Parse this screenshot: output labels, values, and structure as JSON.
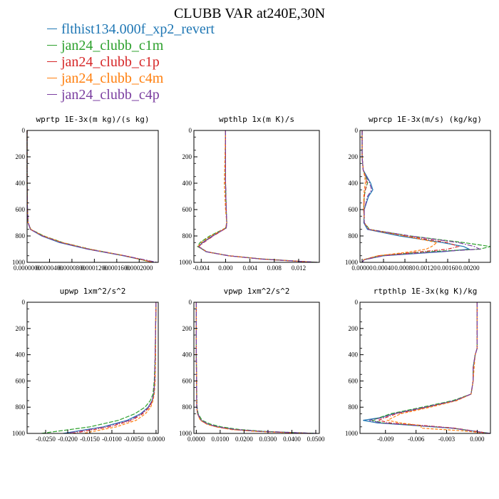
{
  "title": "CLUBB VAR at240E,30N",
  "legend": [
    {
      "label": "flthist134.000f_xp2_revert",
      "color": "#1f77b4"
    },
    {
      "label": "jan24_clubb_c1m",
      "color": "#2ca02c"
    },
    {
      "label": "jan24_clubb_c1p",
      "color": "#d62728"
    },
    {
      "label": "jan24_clubb_c4m",
      "color": "#ff7f0e"
    },
    {
      "label": "jan24_clubb_c4p",
      "color": "#7b3fa0"
    }
  ],
  "chart_data": [
    {
      "type": "line",
      "title": "wprtp  1E-3x(m kg)/(s kg)",
      "xlim": [
        0.0,
        0.000234
      ],
      "ylim": [
        1000,
        0
      ],
      "yticks": [
        0,
        200,
        400,
        600,
        800,
        1000
      ],
      "xticks": [
        0.0,
        4e-05,
        8e-05,
        0.00012,
        0.00016,
        0.0002
      ],
      "xticklabels": [
        "0.0000000",
        "0.0000400",
        "0.0000800",
        "0.0001200",
        "0.0001600",
        "0.0002000"
      ],
      "y": [
        0,
        200,
        400,
        600,
        700,
        750,
        800,
        850,
        900,
        950,
        1000
      ],
      "series": [
        {
          "color": "#1f77b4",
          "values": [
            0.0,
            0.0,
            0.0,
            6e-07,
            1.8e-06,
            6e-06,
            2.6e-05,
            5.8e-05,
            0.000108,
            0.000172,
            0.000226
          ]
        },
        {
          "color": "#2ca02c",
          "values": [
            0.0,
            0.0,
            0.0,
            6e-07,
            1.8e-06,
            6.8e-06,
            3e-05,
            6.4e-05,
            0.000112,
            0.000174,
            0.000224
          ]
        },
        {
          "color": "#d62728",
          "values": [
            0.0,
            0.0,
            0.0,
            6e-07,
            1.8e-06,
            6.4e-06,
            2.8e-05,
            6.2e-05,
            0.00011,
            0.000174,
            0.000226
          ]
        },
        {
          "color": "#ff7f0e",
          "values": [
            0.0,
            0.0,
            0.0,
            6e-07,
            1.8e-06,
            6.6e-06,
            2.9e-05,
            6.3e-05,
            0.000111,
            0.000175,
            0.000225
          ]
        },
        {
          "color": "#7b3fa0",
          "values": [
            0.0,
            0.0,
            0.0,
            6e-07,
            1.8e-06,
            6.2e-06,
            2.7e-05,
            6e-05,
            0.000109,
            0.000174,
            0.000232
          ]
        }
      ]
    },
    {
      "type": "line",
      "title": "wpthlp  1x(m K)/s",
      "xlim": [
        -0.0052,
        0.0154
      ],
      "ylim": [
        1000,
        0
      ],
      "yticks": [
        0,
        200,
        400,
        600,
        800,
        1000
      ],
      "xticks": [
        -0.004,
        0.0,
        0.004,
        0.008,
        0.012
      ],
      "xticklabels": [
        "-0.004",
        "0.000",
        "0.004",
        "0.008",
        "0.012"
      ],
      "y": [
        0,
        200,
        400,
        600,
        700,
        740,
        800,
        850,
        880,
        920,
        950,
        975,
        1000
      ],
      "series": [
        {
          "color": "#1f77b4",
          "values": [
            0.0,
            0.0,
            0.0,
            0.0001,
            0.0002,
            0.0001,
            -0.0022,
            -0.0038,
            -0.0045,
            -0.0032,
            0.0005,
            0.006,
            0.0148
          ]
        },
        {
          "color": "#2ca02c",
          "values": [
            0.0,
            0.0,
            0.0,
            0.0001,
            0.0002,
            0.0,
            -0.0026,
            -0.0042,
            -0.0046,
            -0.003,
            0.0006,
            0.0062,
            0.015
          ]
        },
        {
          "color": "#d62728",
          "values": [
            0.0,
            0.0,
            0.0,
            0.0001,
            0.0002,
            0.0001,
            -0.002,
            -0.0036,
            -0.0044,
            -0.0031,
            0.0005,
            0.0058,
            0.0147
          ]
        },
        {
          "color": "#ff7f0e",
          "values": [
            0.0,
            -0.0001,
            -0.0002,
            0.0,
            0.0002,
            0.0,
            -0.0024,
            -0.004,
            -0.0045,
            -0.0031,
            0.0006,
            0.0061,
            0.0149
          ]
        },
        {
          "color": "#7b3fa0",
          "values": [
            0.0,
            0.0,
            0.0,
            0.0001,
            0.0002,
            0.0001,
            -0.0021,
            -0.0037,
            -0.0044,
            -0.0031,
            0.0005,
            0.0059,
            0.0151
          ]
        }
      ]
    },
    {
      "type": "line",
      "title": "wprcp  1E-3x(m/s) (kg/kg)",
      "xlim": [
        -4e-05,
        0.0024
      ],
      "ylim": [
        1000,
        0
      ],
      "yticks": [
        0,
        200,
        400,
        600,
        800,
        1000
      ],
      "xticks": [
        0.0,
        0.0004,
        0.0008,
        0.0012,
        0.0016,
        0.002
      ],
      "xticklabels": [
        "0.00000",
        "0.00040",
        "0.00080",
        "0.00120",
        "0.00160",
        "0.00200"
      ],
      "y": [
        0,
        200,
        300,
        350,
        400,
        450,
        500,
        600,
        700,
        750,
        800,
        850,
        880,
        900,
        920,
        950,
        980,
        1000
      ],
      "series": [
        {
          "color": "#1f77b4",
          "values": [
            0.0,
            0.0,
            2e-05,
            9e-05,
            0.00016,
            0.0002,
            0.00012,
            4e-05,
            3e-05,
            0.0001,
            0.0007,
            0.0015,
            0.0019,
            0.002,
            0.0015,
            0.0004,
            4e-05,
            0.0
          ]
        },
        {
          "color": "#2ca02c",
          "values": [
            0.0,
            0.0,
            2e-05,
            7e-05,
            0.0001,
            6e-05,
            4e-05,
            3e-05,
            4e-05,
            0.00014,
            0.0009,
            0.0019,
            0.0024,
            0.0022,
            0.0012,
            0.0003,
            3e-05,
            0.0
          ]
        },
        {
          "color": "#d62728",
          "values": [
            0.0,
            0.0,
            2e-05,
            6e-05,
            9e-05,
            6e-05,
            4e-05,
            3e-05,
            4e-05,
            0.00012,
            0.0008,
            0.0016,
            0.0018,
            0.0016,
            0.0011,
            0.0003,
            3e-05,
            0.0
          ]
        },
        {
          "color": "#ff7f0e",
          "values": [
            0.0,
            0.0,
            2e-05,
            5e-05,
            6e-05,
            4e-05,
            3e-05,
            3e-05,
            4e-05,
            0.00013,
            0.0008,
            0.0014,
            0.0013,
            0.0012,
            0.0009,
            0.0003,
            3e-05,
            0.0
          ]
        },
        {
          "color": "#7b3fa0",
          "values": [
            0.0,
            0.0,
            2e-05,
            8e-05,
            0.00014,
            0.00018,
            0.0001,
            4e-05,
            4e-05,
            0.00012,
            0.0009,
            0.0018,
            0.0021,
            0.0022,
            0.0014,
            0.0004,
            4e-05,
            0.0
          ]
        }
      ]
    },
    {
      "type": "line",
      "title": "upwp  1xm^2/s^2",
      "xlim": [
        -0.0292,
        0.0005
      ],
      "ylim": [
        1000,
        0
      ],
      "yticks": [
        0,
        200,
        400,
        600,
        800,
        1000
      ],
      "xticks": [
        -0.025,
        -0.02,
        -0.015,
        -0.01,
        -0.005,
        0.0
      ],
      "xticklabels": [
        "-0.0250",
        "-0.0200",
        "-0.0150",
        "-0.0100",
        "-0.0050",
        "0.0000"
      ],
      "y": [
        0,
        200,
        400,
        600,
        700,
        750,
        800,
        850,
        900,
        950,
        1000
      ],
      "series": [
        {
          "color": "#1f77b4",
          "values": [
            0.0,
            -0.0001,
            -0.0002,
            -0.0003,
            -0.0005,
            -0.0009,
            -0.0018,
            -0.0035,
            -0.0065,
            -0.012,
            -0.021
          ]
        },
        {
          "color": "#2ca02c",
          "values": [
            0.0,
            -0.0001,
            -0.0002,
            -0.0004,
            -0.0007,
            -0.0013,
            -0.0025,
            -0.0048,
            -0.0085,
            -0.015,
            -0.026
          ]
        },
        {
          "color": "#d62728",
          "values": [
            0.0,
            -0.0001,
            -0.0002,
            -0.0003,
            -0.0005,
            -0.0008,
            -0.0015,
            -0.003,
            -0.0055,
            -0.0105,
            -0.019
          ]
        },
        {
          "color": "#ff7f0e",
          "values": [
            0.0,
            -0.0001,
            -0.0001,
            -0.0002,
            -0.0004,
            -0.0007,
            -0.0012,
            -0.0024,
            -0.0045,
            -0.009,
            -0.0165
          ]
        },
        {
          "color": "#7b3fa0",
          "values": [
            0.0,
            -0.0001,
            -0.0002,
            -0.0003,
            -0.0005,
            -0.0009,
            -0.0017,
            -0.0033,
            -0.006,
            -0.0115,
            -0.0205
          ]
        }
      ]
    },
    {
      "type": "line",
      "title": "vpwp  1xm^2/s^2",
      "xlim": [
        -0.001,
        0.0515
      ],
      "ylim": [
        1000,
        0
      ],
      "yticks": [
        0,
        200,
        400,
        600,
        800,
        1000
      ],
      "xticks": [
        0.0,
        0.01,
        0.02,
        0.03,
        0.04,
        0.05
      ],
      "xticklabels": [
        "0.0000",
        "0.0100",
        "0.0200",
        "0.0300",
        "0.0400",
        "0.0500"
      ],
      "y": [
        0,
        200,
        400,
        600,
        800,
        850,
        900,
        930,
        950,
        970,
        985,
        1000
      ],
      "series": [
        {
          "color": "#1f77b4",
          "values": [
            0.0,
            0.0,
            0.0,
            0.0001,
            0.0002,
            0.0006,
            0.002,
            0.005,
            0.009,
            0.016,
            0.027,
            0.049
          ]
        },
        {
          "color": "#2ca02c",
          "values": [
            0.0,
            0.0,
            0.0,
            0.0001,
            0.0003,
            0.0008,
            0.0024,
            0.006,
            0.0105,
            0.018,
            0.029,
            0.05
          ]
        },
        {
          "color": "#d62728",
          "values": [
            0.0,
            0.0,
            0.0,
            0.0001,
            0.0002,
            0.0005,
            0.0018,
            0.0046,
            0.0085,
            0.015,
            0.026,
            0.048
          ]
        },
        {
          "color": "#ff7f0e",
          "values": [
            0.0,
            0.0,
            0.0,
            0.0001,
            0.0002,
            0.0005,
            0.0017,
            0.0044,
            0.0082,
            0.0145,
            0.025,
            0.047
          ]
        },
        {
          "color": "#7b3fa0",
          "values": [
            0.0,
            0.0,
            0.0,
            0.0001,
            0.0002,
            0.0006,
            0.002,
            0.005,
            0.009,
            0.0162,
            0.0275,
            0.0505
          ]
        }
      ]
    },
    {
      "type": "line",
      "title": "rtpthlp  1E-3x(kg K)/kg",
      "xlim": [
        -0.0115,
        0.0013
      ],
      "ylim": [
        1000,
        0
      ],
      "yticks": [
        0,
        200,
        400,
        600,
        800,
        1000
      ],
      "xticks": [
        -0.009,
        -0.006,
        -0.003,
        0.0
      ],
      "xticklabels": [
        "-0.009",
        "-0.006",
        "-0.003",
        "0.000"
      ],
      "y": [
        0,
        200,
        350,
        400,
        500,
        600,
        700,
        750,
        800,
        850,
        880,
        900,
        920,
        940,
        960,
        980,
        1000
      ],
      "series": [
        {
          "color": "#1f77b4",
          "values": [
            0.0,
            0.0,
            0.0,
            -0.0002,
            -0.0004,
            -0.0004,
            -0.0006,
            -0.0022,
            -0.005,
            -0.0082,
            -0.0095,
            -0.0112,
            -0.0098,
            -0.006,
            -0.0025,
            -0.0006,
            0.0013
          ]
        },
        {
          "color": "#2ca02c",
          "values": [
            0.0,
            0.0,
            0.0,
            -0.0002,
            -0.0004,
            -0.0004,
            -0.0006,
            -0.0024,
            -0.0054,
            -0.0085,
            -0.0096,
            -0.0103,
            -0.0092,
            -0.0058,
            -0.0024,
            -0.0006,
            0.0012
          ]
        },
        {
          "color": "#d62728",
          "values": [
            0.0,
            0.0,
            0.0,
            -0.0002,
            -0.0004,
            -0.0004,
            -0.0006,
            -0.0021,
            -0.0049,
            -0.0079,
            -0.009,
            -0.0097,
            -0.0085,
            -0.0052,
            -0.0022,
            -0.0005,
            0.0012
          ]
        },
        {
          "color": "#ff7f0e",
          "values": [
            0.0,
            0.0,
            0.0,
            -0.0002,
            -0.0003,
            -0.0004,
            -0.0006,
            -0.002,
            -0.0046,
            -0.0075,
            -0.0083,
            -0.0088,
            -0.0075,
            -0.0055,
            -0.0055,
            -0.0015,
            0.0011
          ]
        },
        {
          "color": "#7b3fa0",
          "values": [
            0.0,
            0.0,
            0.0,
            -0.0002,
            -0.0004,
            -0.0004,
            -0.0006,
            -0.0022,
            -0.0051,
            -0.0082,
            -0.0093,
            -0.0106,
            -0.0094,
            -0.0058,
            -0.0024,
            -0.0006,
            0.0012
          ]
        }
      ]
    }
  ]
}
